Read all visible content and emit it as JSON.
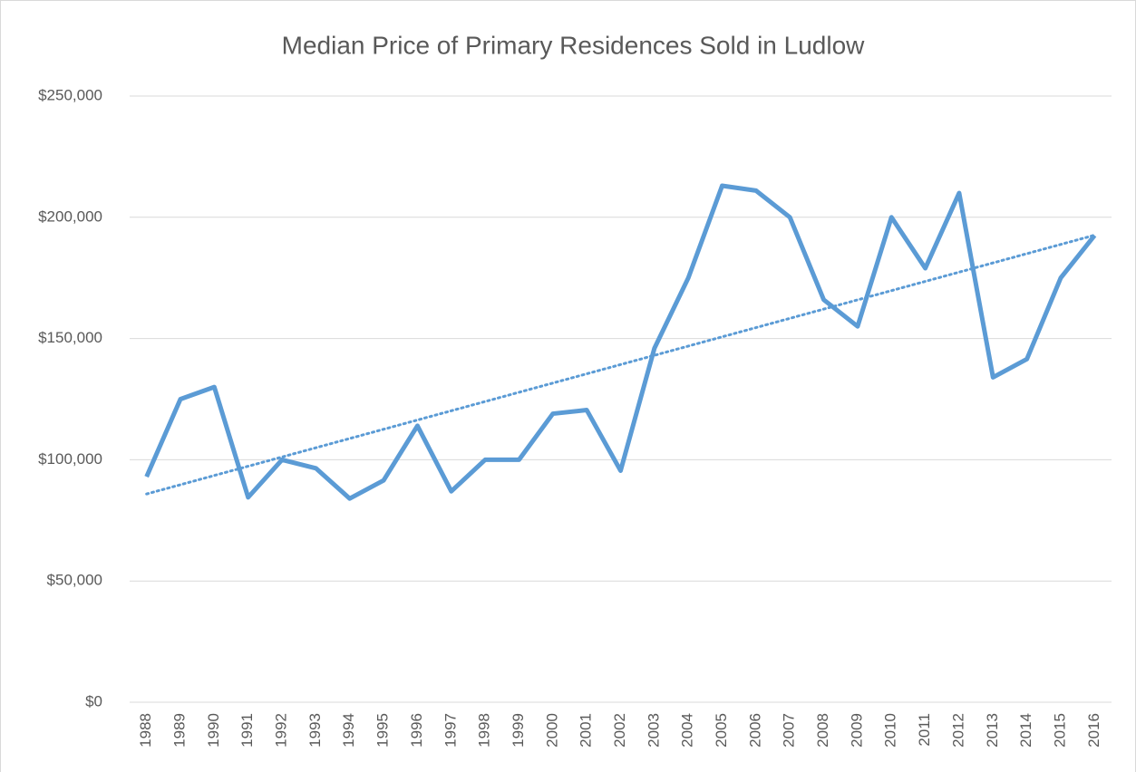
{
  "chart_data": {
    "type": "line",
    "title": "Median Price of Primary Residences Sold in Ludlow",
    "categories": [
      "1988",
      "1989",
      "1990",
      "1991",
      "1992",
      "1993",
      "1994",
      "1995",
      "1996",
      "1997",
      "1998",
      "1999",
      "2000",
      "2001",
      "2002",
      "2003",
      "2004",
      "2005",
      "2006",
      "2007",
      "2008",
      "2009",
      "2010",
      "2011",
      "2012",
      "2013",
      "2014",
      "2015",
      "2016"
    ],
    "series": [
      {
        "color": "#5b9bd5",
        "trendline": "linear",
        "values": [
          93000,
          125000,
          130000,
          84500,
          100000,
          96500,
          84000,
          91500,
          114000,
          87000,
          100000,
          100000,
          119000,
          120500,
          95500,
          146000,
          175000,
          213000,
          211000,
          200000,
          166000,
          155000,
          200000,
          179000,
          210000,
          134000,
          141500,
          175000,
          192500
        ]
      }
    ],
    "ylim": [
      0,
      250000
    ],
    "yticks": [
      {
        "value": 0,
        "label": "$0"
      },
      {
        "value": 50000,
        "label": "$50,000"
      },
      {
        "value": 100000,
        "label": "$100,000"
      },
      {
        "value": 150000,
        "label": "$150,000"
      },
      {
        "value": 200000,
        "label": "$200,000"
      },
      {
        "value": 250000,
        "label": "$250,000"
      }
    ],
    "grid": true
  }
}
